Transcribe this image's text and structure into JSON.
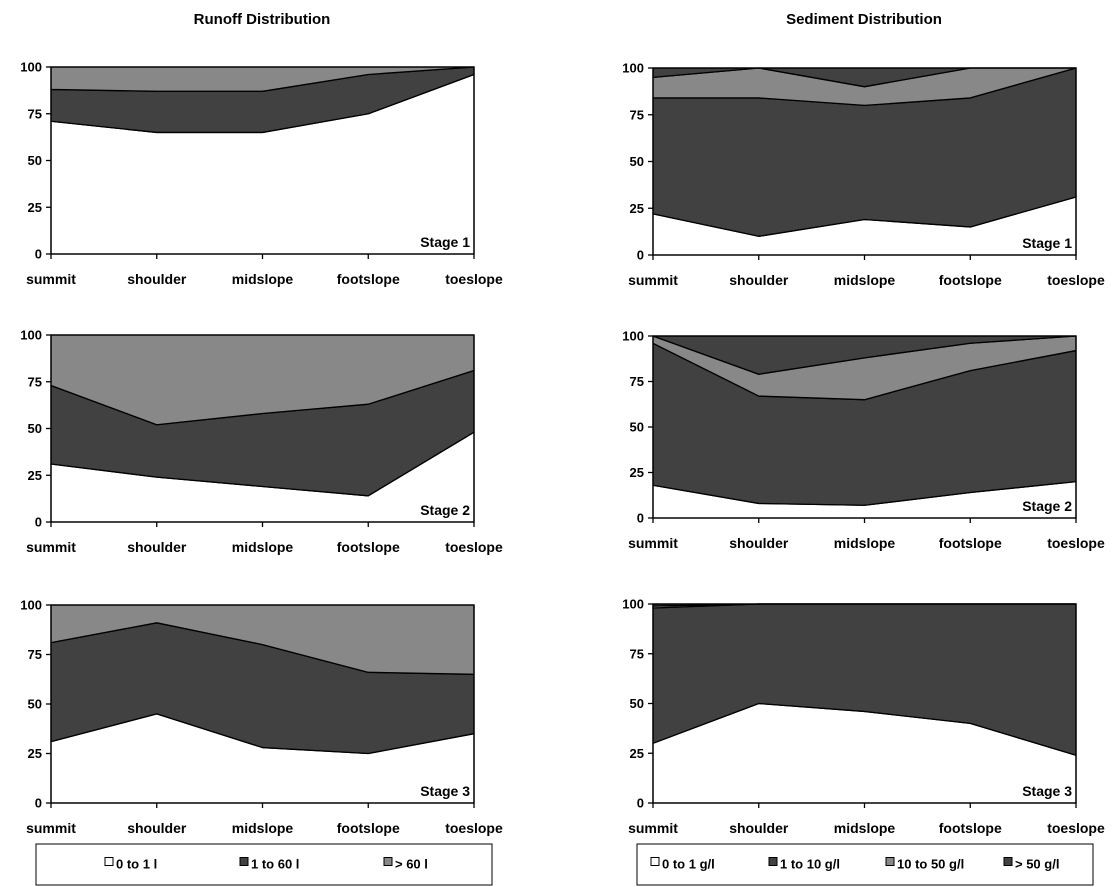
{
  "titles": {
    "runoff": "Runoff Distribution",
    "sediment": "Sediment Distribution"
  },
  "colors": {
    "band0": "#ffffff",
    "band1": "#414141",
    "band2": "#888888",
    "band3": "#414141",
    "line": "#000000"
  },
  "legends": {
    "runoff": [
      {
        "label": "0 to 1 l",
        "color": "#ffffff"
      },
      {
        "label": "1 to 60 l",
        "color": "#414141"
      },
      {
        "label": "> 60 l",
        "color": "#888888"
      }
    ],
    "sediment": [
      {
        "label": "0 to 1 g/l",
        "color": "#ffffff"
      },
      {
        "label": "1 to 10 g/l",
        "color": "#414141"
      },
      {
        "label": "10 to 50 g/l",
        "color": "#888888"
      },
      {
        "label": "> 50 g/l",
        "color": "#414141"
      }
    ]
  },
  "chart_data": [
    {
      "type": "area",
      "stacked": true,
      "group": "runoff",
      "title": "Runoff Distribution",
      "annotation": "Stage 1",
      "categories": [
        "summit",
        "shoulder",
        "midslope",
        "footslope",
        "toeslope"
      ],
      "ylim": [
        0,
        100
      ],
      "yticks": [
        0,
        25,
        50,
        75,
        100
      ],
      "series": [
        {
          "name": "0 to 1 l",
          "values": [
            71,
            65,
            65,
            75,
            96
          ]
        },
        {
          "name": "1 to 60 l",
          "values": [
            17,
            22,
            22,
            21,
            4
          ]
        },
        {
          "name": "> 60 l",
          "values": [
            12,
            13,
            13,
            4,
            0
          ]
        }
      ]
    },
    {
      "type": "area",
      "stacked": true,
      "group": "runoff",
      "annotation": "Stage 2",
      "categories": [
        "summit",
        "shoulder",
        "midslope",
        "footslope",
        "toeslope"
      ],
      "ylim": [
        0,
        100
      ],
      "yticks": [
        0,
        25,
        50,
        75,
        100
      ],
      "series": [
        {
          "name": "0 to 1 l",
          "values": [
            31,
            24,
            19,
            14,
            48
          ]
        },
        {
          "name": "1 to 60 l",
          "values": [
            42,
            28,
            39,
            49,
            33
          ]
        },
        {
          "name": "> 60 l",
          "values": [
            27,
            48,
            42,
            37,
            19
          ]
        }
      ]
    },
    {
      "type": "area",
      "stacked": true,
      "group": "runoff",
      "annotation": "Stage 3",
      "categories": [
        "summit",
        "shoulder",
        "midslope",
        "footslope",
        "toeslope"
      ],
      "ylim": [
        0,
        100
      ],
      "yticks": [
        0,
        25,
        50,
        75,
        100
      ],
      "series": [
        {
          "name": "0 to 1 l",
          "values": [
            31,
            45,
            28,
            25,
            35
          ]
        },
        {
          "name": "1 to 60 l",
          "values": [
            50,
            46,
            52,
            41,
            30
          ]
        },
        {
          "name": "> 60 l",
          "values": [
            19,
            9,
            20,
            34,
            35
          ]
        }
      ]
    },
    {
      "type": "area",
      "stacked": true,
      "group": "sediment",
      "title": "Sediment Distribution",
      "annotation": "Stage 1",
      "categories": [
        "summit",
        "shoulder",
        "midslope",
        "footslope",
        "toeslope"
      ],
      "ylim": [
        0,
        100
      ],
      "yticks": [
        0,
        25,
        50,
        75,
        100
      ],
      "series": [
        {
          "name": "0 to 1 g/l",
          "values": [
            22,
            10,
            19,
            15,
            31
          ]
        },
        {
          "name": "1 to 10 g/l",
          "values": [
            62,
            74,
            61,
            69,
            69
          ]
        },
        {
          "name": "10 to 50 g/l",
          "values": [
            11,
            16,
            10,
            16,
            0
          ]
        },
        {
          "name": "> 50 g/l",
          "values": [
            5,
            0,
            10,
            0,
            0
          ]
        }
      ]
    },
    {
      "type": "area",
      "stacked": true,
      "group": "sediment",
      "annotation": "Stage 2",
      "categories": [
        "summit",
        "shoulder",
        "midslope",
        "footslope",
        "toeslope"
      ],
      "ylim": [
        0,
        100
      ],
      "yticks": [
        0,
        25,
        50,
        75,
        100
      ],
      "series": [
        {
          "name": "0 to 1 g/l",
          "values": [
            18,
            8,
            7,
            14,
            20
          ]
        },
        {
          "name": "1 to 10 g/l",
          "values": [
            78,
            59,
            58,
            67,
            72
          ]
        },
        {
          "name": "10 to 50 g/l",
          "values": [
            4,
            12,
            23,
            15,
            8
          ]
        },
        {
          "name": "> 50 g/l",
          "values": [
            0,
            21,
            12,
            4,
            0
          ]
        }
      ]
    },
    {
      "type": "area",
      "stacked": true,
      "group": "sediment",
      "annotation": "Stage 3",
      "categories": [
        "summit",
        "shoulder",
        "midslope",
        "footslope",
        "toeslope"
      ],
      "ylim": [
        0,
        100
      ],
      "yticks": [
        0,
        25,
        50,
        75,
        100
      ],
      "series": [
        {
          "name": "0 to 1 g/l",
          "values": [
            30,
            50,
            46,
            40,
            24
          ]
        },
        {
          "name": "1 to 10 g/l",
          "values": [
            68,
            50,
            54,
            60,
            76
          ]
        },
        {
          "name": "10 to 50 g/l",
          "values": [
            1,
            0,
            0,
            0,
            0
          ]
        },
        {
          "name": "> 50 g/l",
          "values": [
            1,
            0,
            0,
            0,
            0
          ]
        }
      ]
    }
  ]
}
